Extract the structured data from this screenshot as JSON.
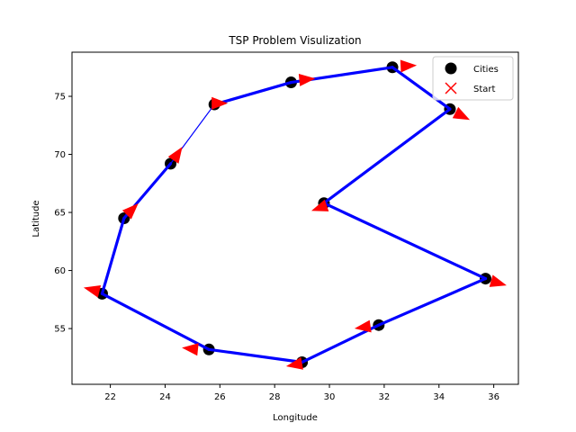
{
  "chart_data": {
    "type": "line",
    "title": "TSP Problem Visulization",
    "xlabel": "Longitude",
    "ylabel": "Latitude",
    "xlim": [
      20.6,
      36.9
    ],
    "ylim": [
      50.2,
      78.8
    ],
    "xticks": [
      22,
      24,
      26,
      28,
      30,
      32,
      34,
      36
    ],
    "yticks": [
      55,
      60,
      65,
      70,
      75
    ],
    "grid": false,
    "legend_position": "top-right",
    "legend": [
      {
        "label": "Cities",
        "marker": "circle",
        "color": "#000000"
      },
      {
        "label": "Start",
        "marker": "x",
        "color": "#ff0000"
      }
    ],
    "cities": [
      {
        "x": 32.3,
        "y": 77.5
      },
      {
        "x": 34.4,
        "y": 73.9
      },
      {
        "x": 29.8,
        "y": 65.8
      },
      {
        "x": 35.7,
        "y": 59.3
      },
      {
        "x": 31.8,
        "y": 55.3
      },
      {
        "x": 29.0,
        "y": 52.1
      },
      {
        "x": 25.6,
        "y": 53.2
      },
      {
        "x": 21.7,
        "y": 58.0
      },
      {
        "x": 22.5,
        "y": 64.5
      },
      {
        "x": 24.2,
        "y": 69.2
      },
      {
        "x": 25.8,
        "y": 74.3
      },
      {
        "x": 28.6,
        "y": 76.2
      }
    ],
    "route": [
      {
        "from": [
          32.3,
          77.5
        ],
        "to": [
          34.4,
          73.9
        ]
      },
      {
        "from": [
          34.4,
          73.9
        ],
        "to": [
          29.8,
          65.8
        ]
      },
      {
        "from": [
          29.8,
          65.8
        ],
        "to": [
          35.7,
          59.3
        ]
      },
      {
        "from": [
          35.7,
          59.3
        ],
        "to": [
          31.8,
          55.3
        ]
      },
      {
        "from": [
          31.8,
          55.3
        ],
        "to": [
          29.0,
          52.1
        ]
      },
      {
        "from": [
          29.0,
          52.1
        ],
        "to": [
          25.6,
          53.2
        ]
      },
      {
        "from": [
          25.6,
          53.2
        ],
        "to": [
          21.7,
          58.0
        ]
      },
      {
        "from": [
          21.7,
          58.0
        ],
        "to": [
          22.5,
          64.5
        ]
      },
      {
        "from": [
          22.5,
          64.5
        ],
        "to": [
          24.2,
          69.2
        ]
      },
      {
        "from": [
          24.2,
          69.2
        ],
        "to": [
          25.8,
          74.3
        ]
      },
      {
        "from": [
          25.8,
          74.3
        ],
        "to": [
          28.6,
          76.2
        ]
      },
      {
        "from": [
          28.6,
          76.2
        ],
        "to": [
          32.3,
          77.5
        ]
      }
    ],
    "arrows": [
      {
        "x": 34.6,
        "y": 73.6,
        "dx": 0.5,
        "dy": -0.6
      },
      {
        "x": 29.9,
        "y": 65.6,
        "dx": -0.6,
        "dy": -0.5
      },
      {
        "x": 35.9,
        "y": 59.1,
        "dx": 0.6,
        "dy": -0.4
      },
      {
        "x": 31.5,
        "y": 55.2,
        "dx": -0.6,
        "dy": -0.2
      },
      {
        "x": 29.0,
        "y": 52.0,
        "dx": -0.7,
        "dy": -0.3
      },
      {
        "x": 25.2,
        "y": 53.2,
        "dx": -0.8,
        "dy": 0.2
      },
      {
        "x": 21.6,
        "y": 58.2,
        "dx": -0.7,
        "dy": 0.4
      },
      {
        "x": 22.6,
        "y": 64.8,
        "dx": 0.3,
        "dy": 0.7
      },
      {
        "x": 24.3,
        "y": 69.5,
        "dx": 0.2,
        "dy": 0.7
      },
      {
        "x": 25.7,
        "y": 74.4,
        "dx": 0.4,
        "dy": 0.0
      },
      {
        "x": 28.9,
        "y": 76.4,
        "dx": 0.9,
        "dy": 0.2
      },
      {
        "x": 32.6,
        "y": 77.6,
        "dx": 0.9,
        "dy": 0.1
      }
    ],
    "colors": {
      "route": "#0000ff",
      "arrow": "#ff0000",
      "city": "#000000"
    }
  }
}
